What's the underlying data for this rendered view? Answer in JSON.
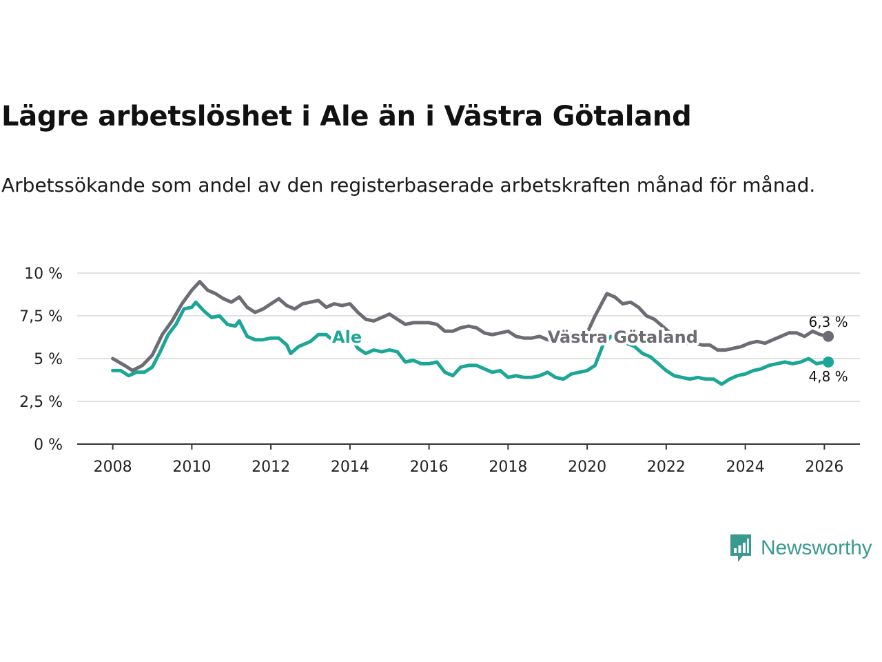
{
  "title": "Lägre arbetslöshet i Ale än i Västra Götaland",
  "subtitle": "Arbetssökande som andel av den registerbaserade arbetskraften månad för månad.",
  "brand": {
    "name": "Newsworthy",
    "color": "#3a9a90",
    "icon": "newsworthy-logo-icon"
  },
  "chart_data": {
    "type": "line",
    "title": "Lägre arbetslöshet i Ale än i Västra Götaland",
    "xlabel": "",
    "ylabel": "",
    "xlim": [
      2007.1,
      2026.9
    ],
    "ylim": [
      0,
      10
    ],
    "x_ticks": [
      2008,
      2010,
      2012,
      2014,
      2016,
      2018,
      2020,
      2022,
      2024,
      2026
    ],
    "x_tick_labels": [
      "2008",
      "2010",
      "2012",
      "2014",
      "2016",
      "2018",
      "2020",
      "2022",
      "2024",
      "2026"
    ],
    "y_ticks": [
      0,
      2.5,
      5,
      7.5,
      10
    ],
    "y_tick_labels": [
      "0 %",
      "2,5 %",
      "5 %",
      "7,5 %",
      "10 %"
    ],
    "grid": true,
    "series": [
      {
        "name": "Västra Götaland",
        "color": "#6e6c73",
        "end_label": "6,3 %",
        "points": [
          [
            2008.0,
            5.0
          ],
          [
            2008.3,
            4.6
          ],
          [
            2008.5,
            4.3
          ],
          [
            2008.75,
            4.6
          ],
          [
            2009.0,
            5.2
          ],
          [
            2009.25,
            6.4
          ],
          [
            2009.5,
            7.2
          ],
          [
            2009.75,
            8.2
          ],
          [
            2010.0,
            9.0
          ],
          [
            2010.2,
            9.5
          ],
          [
            2010.4,
            9.0
          ],
          [
            2010.6,
            8.8
          ],
          [
            2010.8,
            8.5
          ],
          [
            2011.0,
            8.3
          ],
          [
            2011.2,
            8.6
          ],
          [
            2011.4,
            8.0
          ],
          [
            2011.6,
            7.7
          ],
          [
            2011.8,
            7.9
          ],
          [
            2012.0,
            8.2
          ],
          [
            2012.2,
            8.5
          ],
          [
            2012.4,
            8.1
          ],
          [
            2012.6,
            7.9
          ],
          [
            2012.8,
            8.2
          ],
          [
            2013.0,
            8.3
          ],
          [
            2013.2,
            8.4
          ],
          [
            2013.4,
            8.0
          ],
          [
            2013.6,
            8.2
          ],
          [
            2013.8,
            8.1
          ],
          [
            2014.0,
            8.2
          ],
          [
            2014.2,
            7.7
          ],
          [
            2014.4,
            7.3
          ],
          [
            2014.6,
            7.2
          ],
          [
            2014.8,
            7.4
          ],
          [
            2015.0,
            7.6
          ],
          [
            2015.2,
            7.3
          ],
          [
            2015.4,
            7.0
          ],
          [
            2015.6,
            7.1
          ],
          [
            2015.8,
            7.1
          ],
          [
            2016.0,
            7.1
          ],
          [
            2016.2,
            7.0
          ],
          [
            2016.4,
            6.6
          ],
          [
            2016.6,
            6.6
          ],
          [
            2016.8,
            6.8
          ],
          [
            2017.0,
            6.9
          ],
          [
            2017.2,
            6.8
          ],
          [
            2017.4,
            6.5
          ],
          [
            2017.6,
            6.4
          ],
          [
            2017.8,
            6.5
          ],
          [
            2018.0,
            6.6
          ],
          [
            2018.2,
            6.3
          ],
          [
            2018.4,
            6.2
          ],
          [
            2018.6,
            6.2
          ],
          [
            2018.8,
            6.3
          ],
          [
            2019.0,
            6.1
          ],
          [
            2019.2,
            6.0
          ],
          [
            2019.4,
            6.2
          ],
          [
            2019.6,
            6.3
          ],
          [
            2019.8,
            6.5
          ],
          [
            2020.0,
            6.5
          ],
          [
            2020.2,
            7.5
          ],
          [
            2020.5,
            8.8
          ],
          [
            2020.7,
            8.6
          ],
          [
            2020.9,
            8.2
          ],
          [
            2021.1,
            8.3
          ],
          [
            2021.3,
            8.0
          ],
          [
            2021.5,
            7.5
          ],
          [
            2021.7,
            7.3
          ],
          [
            2021.9,
            6.9
          ],
          [
            2022.1,
            6.5
          ],
          [
            2022.3,
            6.0
          ],
          [
            2022.5,
            5.9
          ],
          [
            2022.7,
            5.9
          ],
          [
            2022.9,
            5.8
          ],
          [
            2023.1,
            5.8
          ],
          [
            2023.3,
            5.5
          ],
          [
            2023.5,
            5.5
          ],
          [
            2023.7,
            5.6
          ],
          [
            2023.9,
            5.7
          ],
          [
            2024.1,
            5.9
          ],
          [
            2024.3,
            6.0
          ],
          [
            2024.5,
            5.9
          ],
          [
            2024.7,
            6.1
          ],
          [
            2024.9,
            6.3
          ],
          [
            2025.1,
            6.5
          ],
          [
            2025.3,
            6.5
          ],
          [
            2025.5,
            6.3
          ],
          [
            2025.7,
            6.6
          ],
          [
            2025.9,
            6.4
          ],
          [
            2026.1,
            6.3
          ]
        ]
      },
      {
        "name": "Ale",
        "color": "#1ba698",
        "end_label": "4,8 %",
        "points": [
          [
            2008.0,
            4.3
          ],
          [
            2008.2,
            4.3
          ],
          [
            2008.4,
            4.0
          ],
          [
            2008.6,
            4.2
          ],
          [
            2008.8,
            4.2
          ],
          [
            2009.0,
            4.5
          ],
          [
            2009.2,
            5.4
          ],
          [
            2009.4,
            6.4
          ],
          [
            2009.6,
            7.0
          ],
          [
            2009.8,
            7.9
          ],
          [
            2010.0,
            8.0
          ],
          [
            2010.1,
            8.3
          ],
          [
            2010.3,
            7.8
          ],
          [
            2010.5,
            7.4
          ],
          [
            2010.7,
            7.5
          ],
          [
            2010.9,
            7.0
          ],
          [
            2011.1,
            6.9
          ],
          [
            2011.2,
            7.2
          ],
          [
            2011.4,
            6.3
          ],
          [
            2011.6,
            6.1
          ],
          [
            2011.8,
            6.1
          ],
          [
            2012.0,
            6.2
          ],
          [
            2012.2,
            6.2
          ],
          [
            2012.4,
            5.8
          ],
          [
            2012.5,
            5.3
          ],
          [
            2012.7,
            5.7
          ],
          [
            2012.9,
            5.9
          ],
          [
            2013.0,
            6.0
          ],
          [
            2013.2,
            6.4
          ],
          [
            2013.4,
            6.4
          ],
          [
            2013.6,
            6.0
          ],
          [
            2013.8,
            6.3
          ],
          [
            2014.0,
            6.3
          ],
          [
            2014.2,
            5.6
          ],
          [
            2014.4,
            5.3
          ],
          [
            2014.6,
            5.5
          ],
          [
            2014.8,
            5.4
          ],
          [
            2015.0,
            5.5
          ],
          [
            2015.2,
            5.4
          ],
          [
            2015.4,
            4.8
          ],
          [
            2015.6,
            4.9
          ],
          [
            2015.8,
            4.7
          ],
          [
            2016.0,
            4.7
          ],
          [
            2016.2,
            4.8
          ],
          [
            2016.4,
            4.2
          ],
          [
            2016.6,
            4.0
          ],
          [
            2016.8,
            4.5
          ],
          [
            2017.0,
            4.6
          ],
          [
            2017.2,
            4.6
          ],
          [
            2017.4,
            4.4
          ],
          [
            2017.6,
            4.2
          ],
          [
            2017.8,
            4.3
          ],
          [
            2018.0,
            3.9
          ],
          [
            2018.2,
            4.0
          ],
          [
            2018.4,
            3.9
          ],
          [
            2018.6,
            3.9
          ],
          [
            2018.8,
            4.0
          ],
          [
            2019.0,
            4.2
          ],
          [
            2019.2,
            3.9
          ],
          [
            2019.4,
            3.8
          ],
          [
            2019.6,
            4.1
          ],
          [
            2019.8,
            4.2
          ],
          [
            2020.0,
            4.3
          ],
          [
            2020.2,
            4.6
          ],
          [
            2020.4,
            5.8
          ],
          [
            2020.6,
            6.3
          ],
          [
            2020.8,
            6.1
          ],
          [
            2021.0,
            5.9
          ],
          [
            2021.2,
            5.7
          ],
          [
            2021.4,
            5.3
          ],
          [
            2021.6,
            5.1
          ],
          [
            2021.8,
            4.7
          ],
          [
            2022.0,
            4.3
          ],
          [
            2022.2,
            4.0
          ],
          [
            2022.4,
            3.9
          ],
          [
            2022.6,
            3.8
          ],
          [
            2022.8,
            3.9
          ],
          [
            2023.0,
            3.8
          ],
          [
            2023.2,
            3.8
          ],
          [
            2023.4,
            3.5
          ],
          [
            2023.6,
            3.8
          ],
          [
            2023.8,
            4.0
          ],
          [
            2024.0,
            4.1
          ],
          [
            2024.2,
            4.3
          ],
          [
            2024.4,
            4.4
          ],
          [
            2024.6,
            4.6
          ],
          [
            2024.8,
            4.7
          ],
          [
            2025.0,
            4.8
          ],
          [
            2025.2,
            4.7
          ],
          [
            2025.4,
            4.8
          ],
          [
            2025.6,
            5.0
          ],
          [
            2025.8,
            4.7
          ],
          [
            2026.0,
            4.8
          ],
          [
            2026.1,
            4.8
          ]
        ]
      }
    ],
    "annotations": [
      {
        "text": "Västra Götaland",
        "series": "Västra Götaland",
        "at": [
          2019.0,
          6.3
        ]
      },
      {
        "text": "Ale",
        "series": "Ale",
        "at": [
          2013.55,
          6.3
        ]
      }
    ]
  }
}
